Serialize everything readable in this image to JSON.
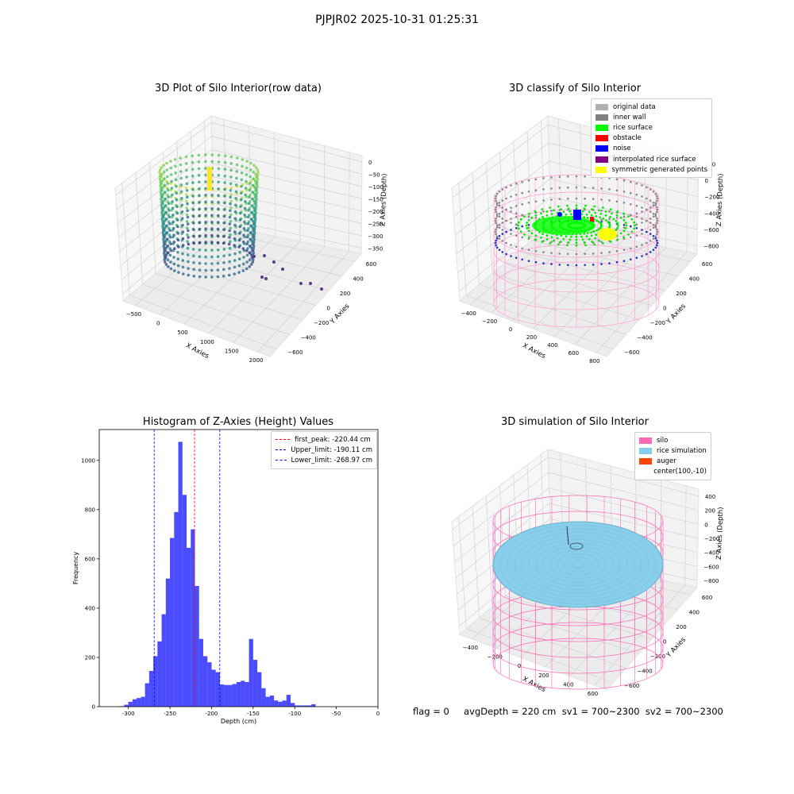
{
  "figure": {
    "suptitle": "PJPJR02 2025-10-31 01:25:31",
    "footer": "flag = 0     avgDepth = 220 cm  sv1 = 700~2300  sv2 = 700~2300"
  },
  "chart_data": [
    {
      "type": "scatter",
      "title": "3D Plot of Silo Interior(row data)",
      "xlabel": "X Axies",
      "ylabel": "Y Axies",
      "zlabel": "Z Axies (Depth)",
      "x_ticks": [
        "−500",
        "0",
        "500",
        "1000",
        "1500",
        "2000"
      ],
      "y_ticks": [
        "−600",
        "−400",
        "−200",
        "0",
        "200",
        "400",
        "600"
      ],
      "z_ticks": [
        "0",
        "−50",
        "−100",
        "−150",
        "−200",
        "−250",
        "−300",
        "−350"
      ],
      "xlim": [
        -600,
        2000
      ],
      "ylim": [
        -650,
        650
      ],
      "zlim": [
        -370,
        0
      ],
      "colormap": "viridis"
    },
    {
      "type": "scatter",
      "title": "3D classify of Silo Interior",
      "xlabel": "X Axies",
      "ylabel": "Y Axies",
      "zlabel": "Z Axies (Depth)",
      "x_ticks": [
        "−400",
        "−200",
        "0",
        "200",
        "400",
        "600",
        "800"
      ],
      "y_ticks": [
        "−600",
        "−400",
        "−200",
        "0",
        "200",
        "400",
        "600"
      ],
      "z_ticks": [
        "200",
        "0",
        "−200",
        "−400",
        "−600",
        "−800"
      ],
      "legend": [
        {
          "label": "original data",
          "color": "#b0b0b0"
        },
        {
          "label": "inner wall",
          "color": "#808080"
        },
        {
          "label": "rice surface",
          "color": "#00ff00"
        },
        {
          "label": "obstacle",
          "color": "#ff0000"
        },
        {
          "label": "noise",
          "color": "#0000ff"
        },
        {
          "label": "interpolated rice surface",
          "color": "#800080"
        },
        {
          "label": "symmetric generated points",
          "color": "#ffff00"
        }
      ]
    },
    {
      "type": "bar",
      "title": "Histogram of Z-Axies (Height) Values",
      "xlabel": "Depth (cm)",
      "ylabel": "Frequency",
      "bin_width": 5,
      "bin_start": -310,
      "values": [
        2,
        8,
        20,
        30,
        35,
        40,
        95,
        145,
        205,
        265,
        375,
        520,
        685,
        790,
        1075,
        860,
        645,
        720,
        490,
        275,
        205,
        180,
        150,
        140,
        90,
        88,
        88,
        92,
        100,
        105,
        100,
        275,
        190,
        140,
        75,
        40,
        45,
        25,
        20,
        25,
        48,
        15,
        5,
        5,
        5,
        5,
        10
      ],
      "xlim": [
        -335,
        0
      ],
      "ylim": [
        0,
        1125
      ],
      "x_ticks": [
        -300,
        -250,
        -200,
        -150,
        -100,
        -50,
        0
      ],
      "y_ticks": [
        0,
        200,
        400,
        600,
        800,
        1000
      ],
      "bar_color": "#0000ff",
      "lines": [
        {
          "label": "first_peak: -220.44 cm",
          "x": -220.44,
          "color": "#ff0000"
        },
        {
          "label": "Upper_limit: -190.11 cm",
          "x": -190.11,
          "color": "#0000ff"
        },
        {
          "label": "Lower_limit: -268.97 cm",
          "x": -268.97,
          "color": "#0000ff"
        }
      ]
    },
    {
      "type": "scatter",
      "title": "3D simulation of Silo Interior",
      "xlabel": "X Axies",
      "ylabel": "Y Axies",
      "zlabel": "Z Axies (Depth)",
      "x_ticks": [
        "−400",
        "−200",
        "0",
        "200",
        "400",
        "600"
      ],
      "y_ticks": [
        "−600",
        "−400",
        "−200",
        "0",
        "200",
        "400",
        "600"
      ],
      "z_ticks": [
        "400",
        "200",
        "0",
        "−200",
        "−400",
        "−600",
        "−800"
      ],
      "legend": [
        {
          "label": "silo",
          "color": "#ff69b4"
        },
        {
          "label": "rice simulation",
          "color": "#87ceeb"
        },
        {
          "label": "auger",
          "color": "#ff4500"
        },
        {
          "label": "center(100,-10)",
          "color": ""
        }
      ]
    }
  ]
}
